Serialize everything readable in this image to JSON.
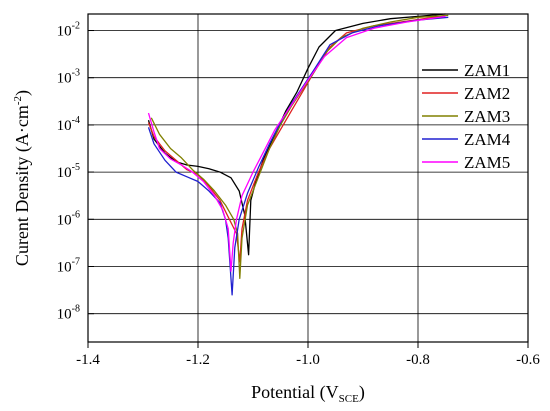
{
  "chart_data": {
    "type": "line",
    "xlabel": {
      "main": "Potential (V",
      "sub": "SCE",
      "tail": ")"
    },
    "ylabel": {
      "main": "Curent Density (A·cm",
      "sup": "-2",
      "tail": ")"
    },
    "xlim": [
      -1.4,
      -0.6
    ],
    "ylim_log10": [
      -8.6,
      -1.65
    ],
    "y_scale": "log",
    "grid": true,
    "legend_position": "top-right inside",
    "x_ticks": [
      {
        "value": -1.4,
        "label": "-1.4"
      },
      {
        "value": -1.2,
        "label": "-1.2"
      },
      {
        "value": -1.0,
        "label": "-1.0"
      },
      {
        "value": -0.8,
        "label": "-0.8"
      },
      {
        "value": -0.6,
        "label": "-0.6"
      }
    ],
    "y_ticks": [
      {
        "exp": -8,
        "base": "10",
        "sup": "-8"
      },
      {
        "exp": -7,
        "base": "10",
        "sup": "-7"
      },
      {
        "exp": -6,
        "base": "10",
        "sup": "-6"
      },
      {
        "exp": -5,
        "base": "10",
        "sup": "-5"
      },
      {
        "exp": -4,
        "base": "10",
        "sup": "-4"
      },
      {
        "exp": -3,
        "base": "10",
        "sup": "-3"
      },
      {
        "exp": -2,
        "base": "10",
        "sup": "-2"
      }
    ],
    "series": [
      {
        "name": "ZAM1",
        "color": "#000000",
        "points": [
          [
            -1.29,
            -3.9
          ],
          [
            -1.28,
            -4.3
          ],
          [
            -1.26,
            -4.6
          ],
          [
            -1.24,
            -4.78
          ],
          [
            -1.22,
            -4.85
          ],
          [
            -1.2,
            -4.88
          ],
          [
            -1.18,
            -4.93
          ],
          [
            -1.16,
            -5.0
          ],
          [
            -1.14,
            -5.12
          ],
          [
            -1.125,
            -5.4
          ],
          [
            -1.115,
            -5.9
          ],
          [
            -1.108,
            -6.75
          ],
          [
            -1.104,
            -5.6
          ],
          [
            -1.095,
            -5.2
          ],
          [
            -1.08,
            -4.7
          ],
          [
            -1.06,
            -4.2
          ],
          [
            -1.04,
            -3.7
          ],
          [
            -1.02,
            -3.3
          ],
          [
            -1.0,
            -2.8
          ],
          [
            -0.98,
            -2.35
          ],
          [
            -0.95,
            -2.0
          ],
          [
            -0.9,
            -1.85
          ],
          [
            -0.85,
            -1.75
          ],
          [
            -0.8,
            -1.7
          ],
          [
            -0.75,
            -1.65
          ]
        ]
      },
      {
        "name": "ZAM2",
        "color": "#e02020",
        "points": [
          [
            -1.29,
            -3.95
          ],
          [
            -1.28,
            -4.25
          ],
          [
            -1.26,
            -4.55
          ],
          [
            -1.24,
            -4.75
          ],
          [
            -1.22,
            -4.95
          ],
          [
            -1.2,
            -5.05
          ],
          [
            -1.18,
            -5.3
          ],
          [
            -1.16,
            -5.6
          ],
          [
            -1.145,
            -5.95
          ],
          [
            -1.13,
            -6.3
          ],
          [
            -1.124,
            -6.9
          ],
          [
            -1.12,
            -6.2
          ],
          [
            -1.11,
            -5.6
          ],
          [
            -1.09,
            -5.0
          ],
          [
            -1.07,
            -4.5
          ],
          [
            -1.05,
            -4.1
          ],
          [
            -1.03,
            -3.7
          ],
          [
            -1.01,
            -3.3
          ],
          [
            -0.99,
            -2.9
          ],
          [
            -0.96,
            -2.35
          ],
          [
            -0.93,
            -2.05
          ],
          [
            -0.88,
            -1.9
          ],
          [
            -0.82,
            -1.8
          ],
          [
            -0.76,
            -1.7
          ],
          [
            -0.75,
            -1.68
          ]
        ]
      },
      {
        "name": "ZAM3",
        "color": "#808000",
        "points": [
          [
            -1.285,
            -3.85
          ],
          [
            -1.27,
            -4.2
          ],
          [
            -1.25,
            -4.5
          ],
          [
            -1.23,
            -4.7
          ],
          [
            -1.21,
            -4.95
          ],
          [
            -1.19,
            -5.15
          ],
          [
            -1.17,
            -5.4
          ],
          [
            -1.15,
            -5.7
          ],
          [
            -1.135,
            -6.0
          ],
          [
            -1.128,
            -6.3
          ],
          [
            -1.124,
            -7.25
          ],
          [
            -1.12,
            -6.4
          ],
          [
            -1.11,
            -5.7
          ],
          [
            -1.09,
            -5.1
          ],
          [
            -1.07,
            -4.5
          ],
          [
            -1.05,
            -4.0
          ],
          [
            -1.03,
            -3.6
          ],
          [
            -1.01,
            -3.25
          ],
          [
            -0.99,
            -2.9
          ],
          [
            -0.97,
            -2.5
          ],
          [
            -0.94,
            -2.15
          ],
          [
            -0.9,
            -1.95
          ],
          [
            -0.85,
            -1.82
          ],
          [
            -0.8,
            -1.72
          ],
          [
            -0.745,
            -1.68
          ]
        ]
      },
      {
        "name": "ZAM4",
        "color": "#2020d0",
        "points": [
          [
            -1.29,
            -4.05
          ],
          [
            -1.28,
            -4.4
          ],
          [
            -1.26,
            -4.75
          ],
          [
            -1.24,
            -5.0
          ],
          [
            -1.22,
            -5.1
          ],
          [
            -1.2,
            -5.2
          ],
          [
            -1.18,
            -5.4
          ],
          [
            -1.16,
            -5.65
          ],
          [
            -1.15,
            -6.0
          ],
          [
            -1.145,
            -6.4
          ],
          [
            -1.138,
            -7.6
          ],
          [
            -1.133,
            -6.6
          ],
          [
            -1.125,
            -6.0
          ],
          [
            -1.11,
            -5.45
          ],
          [
            -1.09,
            -4.9
          ],
          [
            -1.07,
            -4.4
          ],
          [
            -1.05,
            -3.95
          ],
          [
            -1.03,
            -3.55
          ],
          [
            -1.01,
            -3.2
          ],
          [
            -0.99,
            -2.85
          ],
          [
            -0.96,
            -2.3
          ],
          [
            -0.92,
            -2.05
          ],
          [
            -0.87,
            -1.9
          ],
          [
            -0.8,
            -1.78
          ],
          [
            -0.745,
            -1.72
          ]
        ]
      },
      {
        "name": "ZAM5",
        "color": "#ff00ff",
        "points": [
          [
            -1.29,
            -3.75
          ],
          [
            -1.28,
            -4.15
          ],
          [
            -1.27,
            -4.5
          ],
          [
            -1.25,
            -4.72
          ],
          [
            -1.23,
            -4.85
          ],
          [
            -1.21,
            -5.0
          ],
          [
            -1.19,
            -5.2
          ],
          [
            -1.17,
            -5.5
          ],
          [
            -1.155,
            -5.8
          ],
          [
            -1.145,
            -6.2
          ],
          [
            -1.14,
            -7.1
          ],
          [
            -1.136,
            -6.5
          ],
          [
            -1.13,
            -6.0
          ],
          [
            -1.12,
            -5.5
          ],
          [
            -1.1,
            -5.0
          ],
          [
            -1.08,
            -4.55
          ],
          [
            -1.06,
            -4.1
          ],
          [
            -1.04,
            -3.75
          ],
          [
            -1.02,
            -3.4
          ],
          [
            -1.0,
            -3.05
          ],
          [
            -0.97,
            -2.55
          ],
          [
            -0.93,
            -2.15
          ],
          [
            -0.88,
            -1.95
          ],
          [
            -0.82,
            -1.82
          ],
          [
            -0.75,
            -1.7
          ]
        ]
      }
    ]
  }
}
